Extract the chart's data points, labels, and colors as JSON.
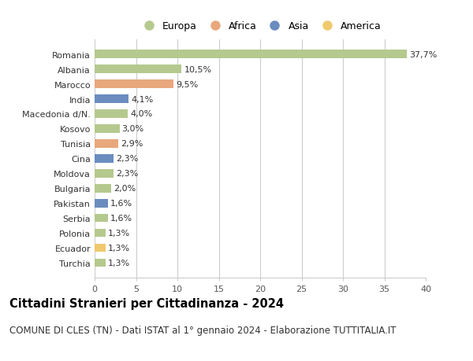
{
  "categories": [
    "Romania",
    "Albania",
    "Marocco",
    "India",
    "Macedonia d/N.",
    "Kosovo",
    "Tunisia",
    "Cina",
    "Moldova",
    "Bulgaria",
    "Pakistan",
    "Serbia",
    "Polonia",
    "Ecuador",
    "Turchia"
  ],
  "values": [
    37.7,
    10.5,
    9.5,
    4.1,
    4.0,
    3.0,
    2.9,
    2.3,
    2.3,
    2.0,
    1.6,
    1.6,
    1.3,
    1.3,
    1.3
  ],
  "labels": [
    "37,7%",
    "10,5%",
    "9,5%",
    "4,1%",
    "4,0%",
    "3,0%",
    "2,9%",
    "2,3%",
    "2,3%",
    "2,0%",
    "1,6%",
    "1,6%",
    "1,3%",
    "1,3%",
    "1,3%"
  ],
  "colors": [
    "#b5c98e",
    "#b5c98e",
    "#e8a87c",
    "#6b8cbf",
    "#b5c98e",
    "#b5c98e",
    "#e8a87c",
    "#6b8cbf",
    "#b5c98e",
    "#b5c98e",
    "#6b8cbf",
    "#b5c98e",
    "#b5c98e",
    "#f0c96e",
    "#b5c98e"
  ],
  "legend_labels": [
    "Europa",
    "Africa",
    "Asia",
    "America"
  ],
  "legend_colors": [
    "#b5c98e",
    "#e8a87c",
    "#6b8cbf",
    "#f0c96e"
  ],
  "xlim": [
    0,
    40
  ],
  "xticks": [
    0,
    5,
    10,
    15,
    20,
    25,
    30,
    35,
    40
  ],
  "title": "Cittadini Stranieri per Cittadinanza - 2024",
  "subtitle": "COMUNE DI CLES (TN) - Dati ISTAT al 1° gennaio 2024 - Elaborazione TUTTITALIA.IT",
  "title_fontsize": 10.5,
  "subtitle_fontsize": 8.5,
  "label_fontsize": 8,
  "tick_fontsize": 8,
  "bg_color": "#ffffff",
  "plot_bg_color": "#ffffff",
  "grid_color": "#cccccc",
  "bar_height": 0.55
}
